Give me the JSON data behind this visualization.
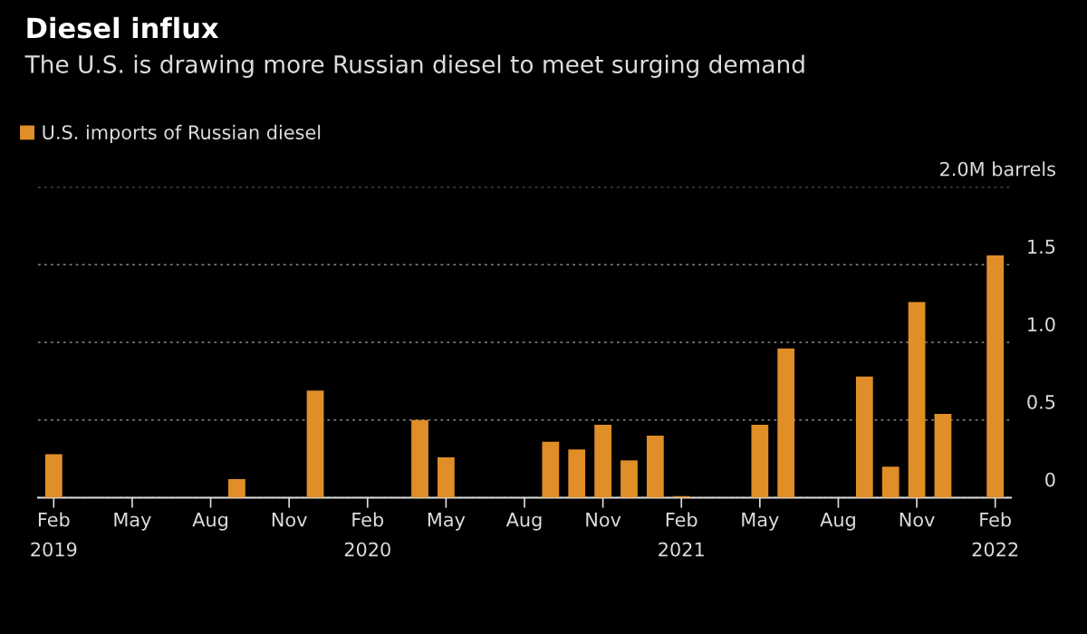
{
  "chart_data": {
    "type": "bar",
    "title": "Diesel influx",
    "subtitle": "The U.S. is drawing more Russian diesel to meet surging demand",
    "categories": [
      "Feb\n2019",
      null,
      null,
      "May",
      null,
      null,
      "Aug",
      null,
      null,
      "Nov",
      null,
      null,
      "Feb\n2020",
      null,
      null,
      "May",
      null,
      null,
      "Aug",
      null,
      null,
      "Nov",
      null,
      null,
      "Feb\n2021",
      null,
      null,
      "May",
      null,
      null,
      "Aug",
      null,
      null,
      "Nov",
      null,
      null,
      "Feb\n2022"
    ],
    "series": [
      {
        "name": "U.S. imports of Russian diesel",
        "color": "#e08e28",
        "values": [
          0.28,
          0,
          0,
          0,
          0,
          0,
          0,
          0.12,
          0,
          0,
          0.69,
          0,
          0,
          0,
          0.5,
          0.26,
          0,
          0,
          0,
          0.36,
          0.31,
          0.47,
          0.24,
          0.4,
          0.01,
          0,
          0,
          0.47,
          0.96,
          0,
          0,
          0.78,
          0.2,
          1.26,
          0.54,
          0,
          1.56
        ]
      }
    ],
    "ylim": [
      0,
      2.0
    ],
    "yticks": [
      0,
      0.5,
      {
        "value": 1.0,
        "label": "1.0"
      },
      1.5,
      {
        "value": 2.0,
        "label": "2.0M barrels"
      }
    ],
    "grid": "y",
    "legend": "top left"
  }
}
